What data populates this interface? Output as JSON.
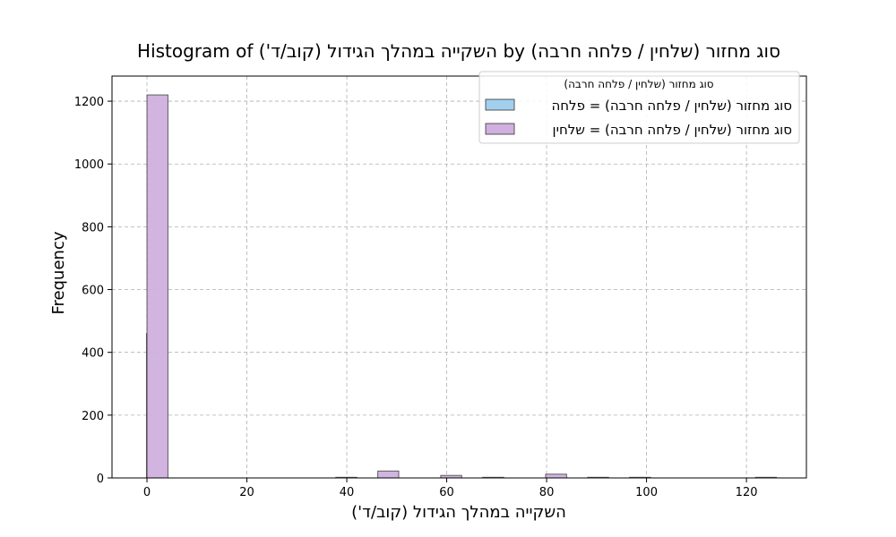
{
  "chart_data": {
    "type": "bar",
    "title": "Histogram of השקייה במהלך הגידול (קוב/ד') by סוג מחזור (שלחין / פלחה חרבה)",
    "xlabel": "השקייה במהלך הגידול (קוב/ד')",
    "ylabel": "Frequency",
    "xlim": [
      -7,
      132
    ],
    "ylim": [
      0,
      1280
    ],
    "xticks": [
      0,
      20,
      40,
      60,
      80,
      100,
      120
    ],
    "yticks": [
      0,
      200,
      400,
      600,
      800,
      1000,
      1200
    ],
    "grid": true,
    "legend": {
      "title": "סוג מחזור (שלחין / פלחה חרבה)",
      "placement": "upper right",
      "entries": [
        {
          "label": "סוג מחזור (שלחין / פלחה חרבה) = פלחה",
          "color": "#a3cfee"
        },
        {
          "label": "סוג מחזור (שלחין / פלחה חרבה) = שלחין",
          "color": "#cfb0de"
        }
      ]
    },
    "series": [
      {
        "name": "סוג מחזור (שלחין / פלחה חרבה) = פלחה",
        "color": "#a3cfee",
        "bins": [
          {
            "x0": -0.1,
            "x1": 0.1,
            "count": 460
          }
        ]
      },
      {
        "name": "סוג מחזור (שלחין / פלחה חרבה) = שלחין",
        "color": "#cfb0de",
        "bins": [
          {
            "x0": 0,
            "x1": 4.2,
            "count": 1220
          },
          {
            "x0": 37.8,
            "x1": 42,
            "count": 2
          },
          {
            "x0": 46.2,
            "x1": 50.4,
            "count": 22
          },
          {
            "x0": 58.8,
            "x1": 63,
            "count": 8
          },
          {
            "x0": 67.2,
            "x1": 71.4,
            "count": 2
          },
          {
            "x0": 79.8,
            "x1": 84,
            "count": 12
          },
          {
            "x0": 88.2,
            "x1": 92.4,
            "count": 2
          },
          {
            "x0": 96.6,
            "x1": 100.8,
            "count": 2
          },
          {
            "x0": 121.8,
            "x1": 126,
            "count": 2
          }
        ]
      }
    ]
  }
}
